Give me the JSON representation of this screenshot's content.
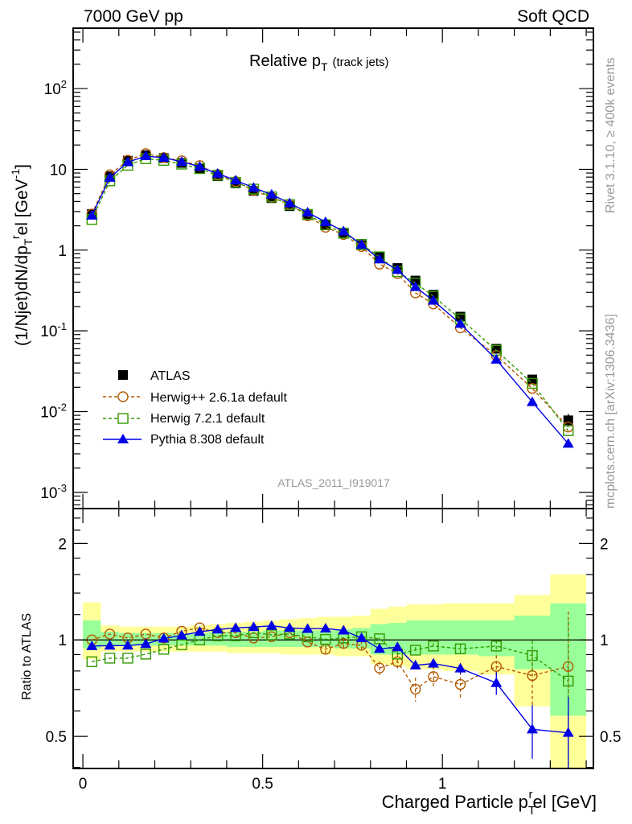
{
  "header": {
    "left": "7000 GeV pp",
    "right": "Soft QCD"
  },
  "side_text": {
    "rivet": "Rivet 3.1.10, ≥ 400k events",
    "mcplots": "mcplots.cern.ch [arXiv:1306.3436]"
  },
  "watermark": "ATLAS_2011_I919017",
  "chart_data": [
    {
      "type": "line",
      "title": {
        "main": "Relative p",
        "sub": "T",
        "suffix": "(track jets)"
      },
      "ylabel": {
        "a": "(1/Njet)dN/dp",
        "sub": "T",
        "sup": "r",
        "b": "el [GeV",
        "sup2": "-1",
        "c": "]"
      },
      "yscale": "log",
      "ylim": [
        0.00063,
        560
      ],
      "xlim": [
        -0.027,
        1.42
      ],
      "yticks": [
        {
          "base": "10",
          "exp": "-3",
          "v": 0.001
        },
        {
          "base": "10",
          "exp": "-2",
          "v": 0.01
        },
        {
          "base": "10",
          "exp": "-1",
          "v": 0.1
        },
        {
          "base": "1",
          "exp": "",
          "v": 1
        },
        {
          "base": "10",
          "exp": "",
          "v": 10
        },
        {
          "base": "10",
          "exp": "2",
          "v": 100
        }
      ],
      "x": [
        0.025,
        0.075,
        0.125,
        0.175,
        0.225,
        0.275,
        0.325,
        0.375,
        0.425,
        0.475,
        0.525,
        0.575,
        0.625,
        0.675,
        0.725,
        0.775,
        0.825,
        0.875,
        0.925,
        0.975,
        1.05,
        1.15,
        1.25,
        1.35
      ],
      "bin_edges": [
        0,
        0.05,
        0.1,
        0.15,
        0.2,
        0.25,
        0.3,
        0.35,
        0.4,
        0.45,
        0.5,
        0.55,
        0.6,
        0.65,
        0.7,
        0.75,
        0.8,
        0.85,
        0.9,
        0.95,
        1.0,
        1.1,
        1.2,
        1.3,
        1.4
      ],
      "data": {
        "name": "ATLAS",
        "values": [
          2.8,
          8.2,
          12.8,
          15.0,
          13.8,
          12.0,
          10.2,
          8.2,
          6.7,
          5.4,
          4.4,
          3.5,
          2.7,
          2.05,
          1.6,
          1.15,
          0.82,
          0.6,
          0.42,
          0.28,
          0.15,
          0.06,
          0.025,
          0.0078
        ]
      },
      "legend": {
        "placement": "lower-left",
        "entries": [
          "ATLAS",
          "Herwig++ 2.6.1a default",
          "Herwig 7.2.1 default",
          "Pythia 8.308 default"
        ]
      },
      "series": [
        {
          "name": "Herwig++ 2.6.1a default",
          "color": "#b35900",
          "marker": "open-circle",
          "dash": true,
          "ratio": [
            1.0,
            1.043,
            1.014,
            1.043,
            1.014,
            1.064,
            1.091,
            1.053,
            1.053,
            1.014,
            1.023,
            1.053,
            0.985,
            0.935,
            0.975,
            0.962,
            0.817,
            0.855,
            0.702,
            0.768,
            0.726,
            0.826,
            0.774,
            0.826
          ],
          "ratio_err": [
            0,
            0,
            0,
            0,
            0,
            0,
            0,
            0,
            0,
            0,
            0,
            0,
            0.02,
            0.03,
            0.03,
            0.03,
            0.04,
            0.05,
            0.06,
            0.06,
            0.07,
            0.07,
            0.15,
            0.4
          ]
        },
        {
          "name": "Herwig 7.2.1 default",
          "color": "#339900",
          "marker": "open-square",
          "dash": true,
          "ratio": [
            0.855,
            0.877,
            0.877,
            0.903,
            0.935,
            0.966,
            1.0,
            1.03,
            1.03,
            1.053,
            1.037,
            1.043,
            1.023,
            1.004,
            1.014,
            1.023,
            1.008,
            0.903,
            0.929,
            0.957,
            0.938,
            0.957,
            0.894,
            0.744
          ],
          "ratio_err": [
            0,
            0,
            0,
            0,
            0,
            0,
            0,
            0,
            0,
            0,
            0,
            0,
            0,
            0,
            0,
            0,
            0.01,
            0.02,
            0.02,
            0.02,
            0.03,
            0.04,
            0.1,
            0.4
          ]
        },
        {
          "name": "Pythia 8.308 default",
          "color": "#0000e6",
          "marker": "filled-triangle",
          "dash": false,
          "ratio": [
            0.957,
            0.96,
            0.96,
            0.971,
            1.01,
            1.033,
            1.06,
            1.078,
            1.09,
            1.097,
            1.107,
            1.09,
            1.083,
            1.086,
            1.07,
            1.014,
            0.938,
            0.949,
            0.833,
            0.844,
            0.815,
            0.734,
            0.526,
            0.513
          ],
          "ratio_err": [
            0,
            0,
            0,
            0,
            0,
            0,
            0,
            0,
            0,
            0,
            0,
            0,
            0,
            0,
            0,
            0,
            0.01,
            0.02,
            0.02,
            0.02,
            0.03,
            0.06,
            0.1,
            0.15
          ]
        }
      ]
    },
    {
      "type": "line",
      "ylabel": "Ratio to ATLAS",
      "xlabel": {
        "a": "Charged Particle p",
        "sub": "T",
        "sup": "r",
        "b": "el [GeV]"
      },
      "yscale": "log",
      "ylim": [
        0.397,
        2.57
      ],
      "yticks": [
        {
          "label": "0.5",
          "v": 0.5
        },
        {
          "label": "1",
          "v": 1
        },
        {
          "label": "2",
          "v": 2
        }
      ],
      "xticks": [
        {
          "label": "0",
          "v": 0
        },
        {
          "label": "0.5",
          "v": 0.5
        },
        {
          "label": "1",
          "v": 1
        }
      ],
      "band_yellow": [
        [
          0.87,
          1.31
        ],
        [
          0.92,
          1.11
        ],
        [
          0.92,
          1.1
        ],
        [
          0.92,
          1.1
        ],
        [
          0.92,
          1.1
        ],
        [
          0.92,
          1.1
        ],
        [
          0.92,
          1.11
        ],
        [
          0.92,
          1.12
        ],
        [
          0.91,
          1.13
        ],
        [
          0.91,
          1.14
        ],
        [
          0.91,
          1.15
        ],
        [
          0.9,
          1.16
        ],
        [
          0.9,
          1.17
        ],
        [
          0.9,
          1.18
        ],
        [
          0.89,
          1.18
        ],
        [
          0.89,
          1.19
        ],
        [
          0.84,
          1.25
        ],
        [
          0.83,
          1.27
        ],
        [
          0.81,
          1.29
        ],
        [
          0.81,
          1.29
        ],
        [
          0.8,
          1.3
        ],
        [
          0.78,
          1.3
        ],
        [
          0.62,
          1.38
        ],
        [
          0.38,
          1.6
        ]
      ],
      "band_green": [
        [
          0.94,
          1.15
        ],
        [
          0.957,
          1.06
        ],
        [
          0.96,
          1.05
        ],
        [
          0.96,
          1.05
        ],
        [
          0.96,
          1.05
        ],
        [
          0.96,
          1.05
        ],
        [
          0.96,
          1.05
        ],
        [
          0.96,
          1.06
        ],
        [
          0.95,
          1.06
        ],
        [
          0.95,
          1.06
        ],
        [
          0.95,
          1.07
        ],
        [
          0.95,
          1.07
        ],
        [
          0.95,
          1.07
        ],
        [
          0.95,
          1.07
        ],
        [
          0.94,
          1.08
        ],
        [
          0.94,
          1.09
        ],
        [
          0.9,
          1.12
        ],
        [
          0.9,
          1.13
        ],
        [
          0.9,
          1.15
        ],
        [
          0.9,
          1.15
        ],
        [
          0.9,
          1.15
        ],
        [
          0.89,
          1.15
        ],
        [
          0.81,
          1.19
        ],
        [
          0.58,
          1.3
        ]
      ]
    }
  ],
  "colors": {
    "yellow": "#ffff99",
    "green": "#99ff99",
    "data": "#000000"
  }
}
